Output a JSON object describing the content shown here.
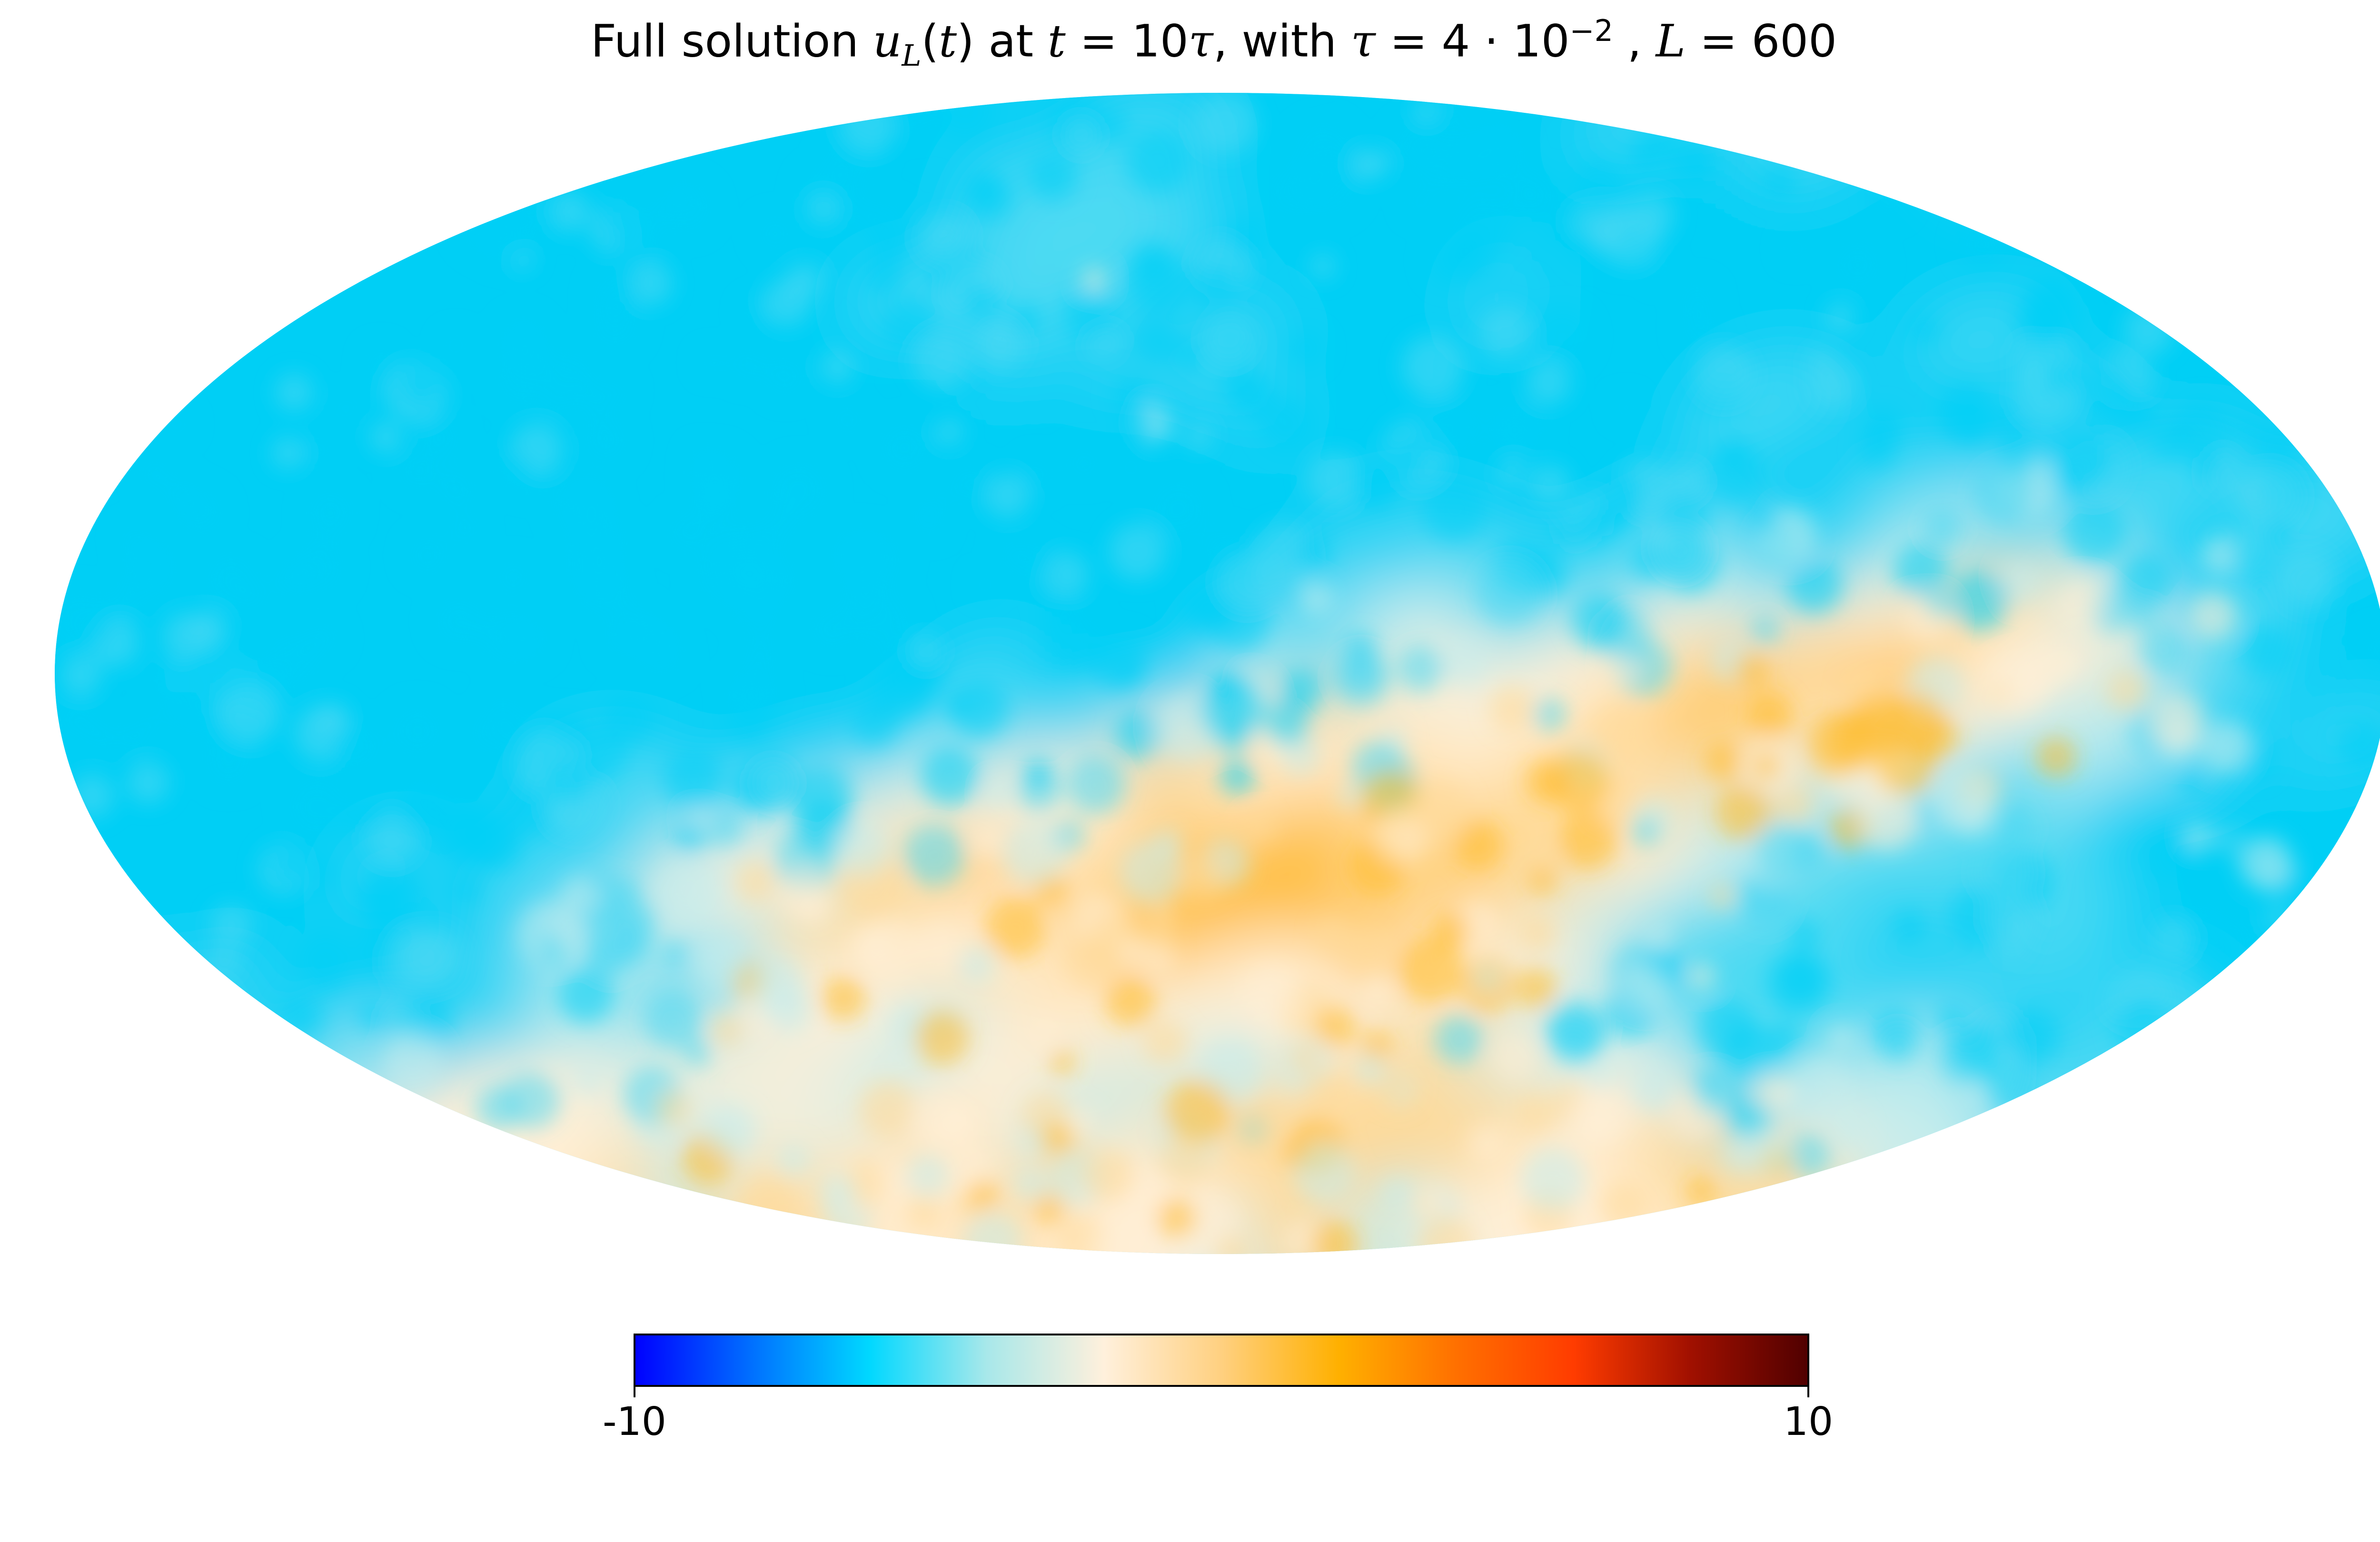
{
  "chart_data": {
    "type": "heatmap",
    "projection": "mollweide",
    "title": {
      "prefix": "Full solution ",
      "u": "u",
      "u_sub": "L",
      "paren_open": "(",
      "t1": "t",
      "paren_close": ")",
      "mid1": " at ",
      "t2": "t",
      "eq1": " = 10",
      "tau1": "τ",
      "mid2": ", with ",
      "tau2": "τ",
      "eq2": " = 4 · 10",
      "exp": "−2",
      "mid3": " , ",
      "L": "L",
      "eq3": " = 600"
    },
    "colorbar": {
      "min": -10,
      "max": 10,
      "tick_labels": [
        "-10",
        "10"
      ],
      "orientation": "horizontal",
      "placement": "bottom",
      "colors": [
        "#0000ff",
        "#0070ff",
        "#00d8ff",
        "#a8e8ea",
        "#fff0dc",
        "#ffd080",
        "#ffb000",
        "#ff7000",
        "#ff3c00",
        "#a01000",
        "#500000"
      ]
    },
    "field_summary": {
      "value_range_shown": [
        -4,
        3.5
      ],
      "dominant_negative_region": "north and west",
      "dominant_positive_region": "south and south-center",
      "peak_positive_location": "south-center, around lat -25, lon 0",
      "peak_negative_location": "north-top and west-center"
    }
  }
}
